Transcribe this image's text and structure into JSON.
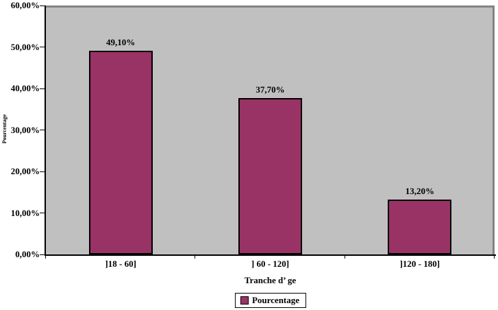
{
  "chart_data": {
    "type": "bar",
    "title": "",
    "categories": [
      "]18 - 60]",
      "] 60 - 120]",
      "]120 - 180]"
    ],
    "values": [
      49.1,
      37.7,
      13.2
    ],
    "data_labels": [
      "49,10%",
      "37,70%",
      "13,20%"
    ],
    "series": [
      {
        "name": "Pourcentage",
        "values": [
          49.1,
          37.7,
          13.2
        ]
      }
    ],
    "xlabel": "Tranche d’ ge",
    "ylabel": "Pourcentage",
    "ylim": [
      0,
      60
    ],
    "y_tick_step": 10,
    "y_tick_labels": [
      "0,00%",
      "10,00%",
      "20,00%",
      "30,00%",
      "40,00%",
      "50,00%",
      "60,00%"
    ],
    "grid": false,
    "legend_position": "bottom",
    "colors": {
      "bar_fill": "#993366",
      "bar_border": "#000000",
      "plot_background": "#C0C0C0",
      "plot_border": "#848284",
      "axis": "#000000",
      "text": "#000000",
      "chart_background": "#ffffff"
    }
  },
  "axes": {
    "x_title": "Tranche d’ ge",
    "y_title": "Pourcentage"
  },
  "legend": {
    "label": "Pourcentage",
    "swatch_color": "#993366"
  }
}
